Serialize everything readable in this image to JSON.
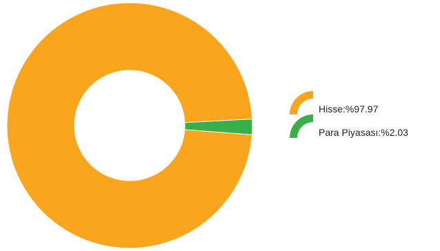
{
  "chart_data": {
    "type": "pie",
    "donut": true,
    "legend_position": "right",
    "slices": [
      {
        "label": "Hisse:%97.97",
        "name": "Hisse",
        "value": 97.97,
        "color": "#f9a51d"
      },
      {
        "label": "Para Piyasası:%2.03",
        "name": "Para Piyasası",
        "value": 2.03,
        "color": "#3aaf49"
      }
    ]
  }
}
